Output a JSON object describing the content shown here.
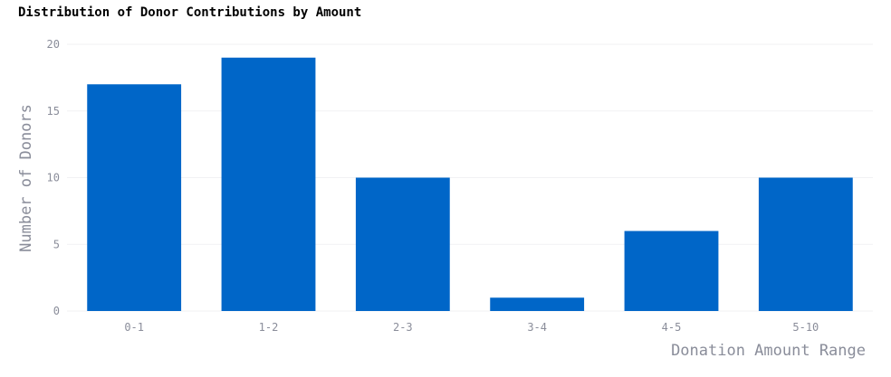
{
  "chart_data": {
    "type": "bar",
    "title": "Distribution of Donor Contributions by Amount",
    "xlabel": "Donation Amount Range",
    "ylabel": "Number of Donors",
    "categories": [
      "0-1",
      "1-2",
      "2-3",
      "3-4",
      "4-5",
      "5-10"
    ],
    "values": [
      17,
      19,
      10,
      1,
      6,
      10
    ],
    "ylim": [
      0,
      20
    ],
    "yticks": [
      0,
      5,
      10,
      15,
      20
    ],
    "bar_color": "#0066c8",
    "grid": true,
    "legend": false
  }
}
